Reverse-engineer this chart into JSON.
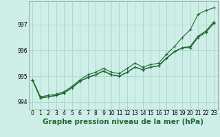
{
  "title": "Graphe pression niveau de la mer (hPa)",
  "background_color": "#ceeee8",
  "grid_color": "#aad4cc",
  "line_color": "#1a6b2a",
  "x_ticks": [
    0,
    1,
    2,
    3,
    4,
    5,
    6,
    7,
    8,
    9,
    10,
    11,
    12,
    13,
    14,
    15,
    16,
    17,
    18,
    19,
    20,
    21,
    22,
    23
  ],
  "y_ticks": [
    994,
    995,
    996,
    997
  ],
  "ylim": [
    993.7,
    997.9
  ],
  "xlim": [
    -0.5,
    23.5
  ],
  "series": [
    [
      994.85,
      994.2,
      994.25,
      994.3,
      994.4,
      994.6,
      994.85,
      995.05,
      995.15,
      995.3,
      995.15,
      995.1,
      995.3,
      995.5,
      995.35,
      995.45,
      995.5,
      995.85,
      996.15,
      996.5,
      996.8,
      997.4,
      997.55,
      997.65
    ],
    [
      994.85,
      994.15,
      994.2,
      994.25,
      994.35,
      994.55,
      994.8,
      994.95,
      995.05,
      995.2,
      995.05,
      995.0,
      995.15,
      995.35,
      995.25,
      995.35,
      995.4,
      995.7,
      995.95,
      996.1,
      996.1,
      996.5,
      996.7,
      997.05
    ],
    [
      994.85,
      994.15,
      994.2,
      994.25,
      994.35,
      994.55,
      994.8,
      994.95,
      995.05,
      995.2,
      995.05,
      995.0,
      995.15,
      995.35,
      995.25,
      995.35,
      995.4,
      995.7,
      995.95,
      996.1,
      996.15,
      996.55,
      996.75,
      997.1
    ],
    [
      994.85,
      994.15,
      994.2,
      994.25,
      994.35,
      994.55,
      994.8,
      994.95,
      995.05,
      995.2,
      995.05,
      995.0,
      995.15,
      995.35,
      995.25,
      995.35,
      995.4,
      995.7,
      995.95,
      996.1,
      996.15,
      996.55,
      996.75,
      997.1
    ]
  ],
  "marker_series_indices": [
    0,
    1,
    2
  ],
  "marker": "+",
  "marker_size": 3.5,
  "linewidth": 0.8,
  "title_fontsize": 7.5,
  "tick_fontsize": 5.5
}
